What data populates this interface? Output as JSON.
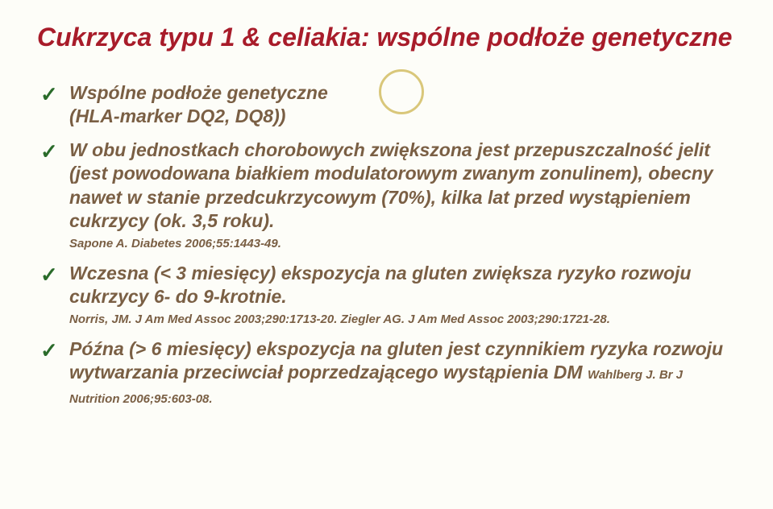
{
  "background_color": "#fdfdf8",
  "title_color": "#a81c2a",
  "body_text_color": "#7a5f44",
  "checkmark_color": "#2a6b2a",
  "circle_color": "#d9c77a",
  "title": "Cukrzyca typu 1 & celiakia: wspólne podłoże genetyczne",
  "bullets": [
    {
      "text": "Wspólne podłoże genetyczne",
      "subtext": "(HLA-marker DQ2, DQ8))",
      "ref": ""
    },
    {
      "text": "W obu jednostkach chorobowych zwiększona jest przepuszczalność jelit (jest powodowana białkiem modulatorowym zwanym zonulinem), obecny nawet w stanie przedcukrzycowym (70%), kilka lat przed wystąpieniem cukrzycy (ok. 3,5 roku).",
      "ref": "Sapone A. Diabetes 2006;55:1443-49."
    },
    {
      "text": "Wczesna (< 3 miesięcy) ekspozycja na gluten zwiększa ryzyko rozwoju cukrzycy 6- do 9-krotnie.",
      "ref": "Norris, JM. J Am Med Assoc 2003;290:1713-20.  Ziegler AG. J Am Med Assoc 2003;290:1721-28."
    },
    {
      "text": "Późna (> 6 miesięcy) ekspozycja na gluten jest czynnikiem ryzyka rozwoju wytwarzania przeciwciał poprzedzającego wystąpienia DM",
      "ref": "Wahlberg J. Br J Nutrition 2006;95:603-08."
    }
  ]
}
